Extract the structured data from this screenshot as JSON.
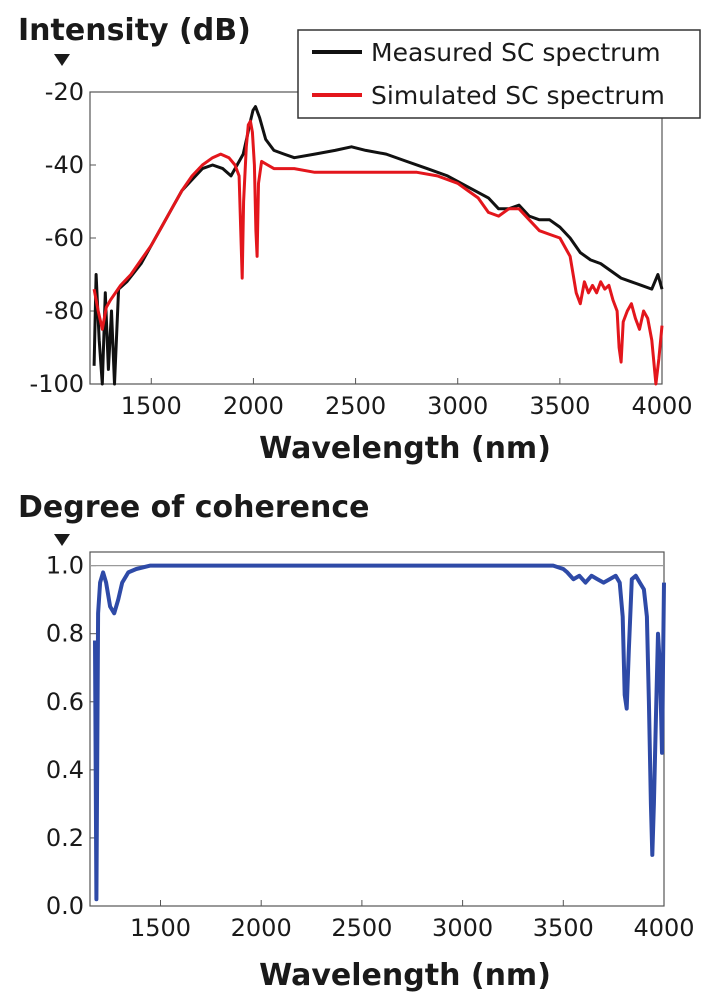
{
  "chart_data": [
    {
      "type": "line",
      "ylabel": "Intensity (dB)",
      "xlabel": "Wavelength (nm)",
      "xlim": [
        1200,
        4000
      ],
      "ylim": [
        -100,
        -20
      ],
      "x_ticks": [
        "1500",
        "2000",
        "2500",
        "3000",
        "3500",
        "4000"
      ],
      "x_tick_values": [
        1500,
        2000,
        2500,
        3000,
        3500,
        4000
      ],
      "y_ticks": [
        "-20",
        "-40",
        "-60",
        "-80",
        "-100"
      ],
      "y_tick_values": [
        -20,
        -40,
        -60,
        -80,
        -100
      ],
      "grid": false,
      "legend_position": "top-right",
      "series": [
        {
          "name": "Measured SC spectrum",
          "color": "#111111",
          "points": [
            [
              1220,
              -95
            ],
            [
              1230,
              -70
            ],
            [
              1245,
              -88
            ],
            [
              1260,
              -100
            ],
            [
              1275,
              -75
            ],
            [
              1290,
              -96
            ],
            [
              1305,
              -80
            ],
            [
              1320,
              -100
            ],
            [
              1340,
              -74
            ],
            [
              1380,
              -72
            ],
            [
              1450,
              -67
            ],
            [
              1500,
              -62
            ],
            [
              1550,
              -57
            ],
            [
              1600,
              -52
            ],
            [
              1650,
              -47
            ],
            [
              1700,
              -44
            ],
            [
              1750,
              -41
            ],
            [
              1800,
              -40
            ],
            [
              1850,
              -41
            ],
            [
              1890,
              -43
            ],
            [
              1920,
              -40
            ],
            [
              1950,
              -37
            ],
            [
              1970,
              -32
            ],
            [
              1985,
              -28
            ],
            [
              1998,
              -25
            ],
            [
              2010,
              -24
            ],
            [
              2030,
              -27
            ],
            [
              2060,
              -33
            ],
            [
              2100,
              -36
            ],
            [
              2150,
              -37
            ],
            [
              2200,
              -38
            ],
            [
              2300,
              -37
            ],
            [
              2400,
              -36
            ],
            [
              2480,
              -35
            ],
            [
              2550,
              -36
            ],
            [
              2650,
              -37
            ],
            [
              2750,
              -39
            ],
            [
              2850,
              -41
            ],
            [
              2950,
              -43
            ],
            [
              3050,
              -46
            ],
            [
              3150,
              -49
            ],
            [
              3200,
              -52
            ],
            [
              3250,
              -52
            ],
            [
              3300,
              -51
            ],
            [
              3350,
              -54
            ],
            [
              3400,
              -55
            ],
            [
              3450,
              -55
            ],
            [
              3500,
              -57
            ],
            [
              3550,
              -60
            ],
            [
              3600,
              -64
            ],
            [
              3650,
              -66
            ],
            [
              3700,
              -67
            ],
            [
              3750,
              -69
            ],
            [
              3800,
              -71
            ],
            [
              3850,
              -72
            ],
            [
              3900,
              -73
            ],
            [
              3950,
              -74
            ],
            [
              3980,
              -70
            ],
            [
              4000,
              -74
            ]
          ]
        },
        {
          "name": "Simulated SC spectrum",
          "color": "#e3161c",
          "points": [
            [
              1220,
              -74
            ],
            [
              1240,
              -80
            ],
            [
              1260,
              -85
            ],
            [
              1280,
              -79
            ],
            [
              1300,
              -77
            ],
            [
              1350,
              -73
            ],
            [
              1400,
              -70
            ],
            [
              1450,
              -66
            ],
            [
              1500,
              -62
            ],
            [
              1550,
              -57
            ],
            [
              1600,
              -52
            ],
            [
              1650,
              -47
            ],
            [
              1700,
              -43
            ],
            [
              1750,
              -40
            ],
            [
              1800,
              -38
            ],
            [
              1840,
              -37
            ],
            [
              1880,
              -38
            ],
            [
              1910,
              -40
            ],
            [
              1930,
              -43
            ],
            [
              1940,
              -62
            ],
            [
              1945,
              -71
            ],
            [
              1952,
              -50
            ],
            [
              1965,
              -35
            ],
            [
              1975,
              -29
            ],
            [
              1985,
              -28
            ],
            [
              1995,
              -31
            ],
            [
              2005,
              -40
            ],
            [
              2012,
              -58
            ],
            [
              2018,
              -65
            ],
            [
              2025,
              -45
            ],
            [
              2040,
              -39
            ],
            [
              2070,
              -40
            ],
            [
              2100,
              -41
            ],
            [
              2200,
              -41
            ],
            [
              2300,
              -42
            ],
            [
              2400,
              -42
            ],
            [
              2500,
              -42
            ],
            [
              2600,
              -42
            ],
            [
              2700,
              -42
            ],
            [
              2800,
              -42
            ],
            [
              2900,
              -43
            ],
            [
              3000,
              -45
            ],
            [
              3050,
              -47
            ],
            [
              3100,
              -49
            ],
            [
              3150,
              -53
            ],
            [
              3200,
              -54
            ],
            [
              3250,
              -52
            ],
            [
              3300,
              -52
            ],
            [
              3350,
              -55
            ],
            [
              3400,
              -58
            ],
            [
              3450,
              -59
            ],
            [
              3500,
              -60
            ],
            [
              3550,
              -65
            ],
            [
              3580,
              -75
            ],
            [
              3600,
              -78
            ],
            [
              3620,
              -72
            ],
            [
              3640,
              -75
            ],
            [
              3660,
              -73
            ],
            [
              3680,
              -75
            ],
            [
              3700,
              -72
            ],
            [
              3720,
              -74
            ],
            [
              3740,
              -73
            ],
            [
              3760,
              -77
            ],
            [
              3780,
              -80
            ],
            [
              3790,
              -90
            ],
            [
              3800,
              -94
            ],
            [
              3810,
              -83
            ],
            [
              3830,
              -80
            ],
            [
              3850,
              -78
            ],
            [
              3870,
              -82
            ],
            [
              3890,
              -85
            ],
            [
              3910,
              -80
            ],
            [
              3930,
              -82
            ],
            [
              3950,
              -88
            ],
            [
              3970,
              -100
            ],
            [
              3985,
              -93
            ],
            [
              4000,
              -84
            ]
          ]
        }
      ]
    },
    {
      "type": "area",
      "ylabel": "Degree of coherence",
      "xlabel": "Wavelength (nm)",
      "xlim": [
        1150,
        4000
      ],
      "ylim": [
        0,
        1.04
      ],
      "x_ticks": [
        "1500",
        "2000",
        "2500",
        "3000",
        "3500",
        "4000"
      ],
      "x_tick_values": [
        1500,
        2000,
        2500,
        3000,
        3500,
        4000
      ],
      "y_ticks": [
        "1.0",
        "0.8",
        "0.6",
        "0.4",
        "0.2",
        "0.0"
      ],
      "y_tick_values": [
        1.0,
        0.8,
        0.6,
        0.4,
        0.2,
        0.0
      ],
      "reference_line": 1.0,
      "grid": false,
      "series": [
        {
          "color": "#2e4aa7",
          "points": [
            [
              1175,
              0.78
            ],
            [
              1182,
              0.02
            ],
            [
              1190,
              0.86
            ],
            [
              1200,
              0.95
            ],
            [
              1215,
              0.98
            ],
            [
              1230,
              0.95
            ],
            [
              1250,
              0.88
            ],
            [
              1270,
              0.86
            ],
            [
              1290,
              0.9
            ],
            [
              1310,
              0.95
            ],
            [
              1340,
              0.98
            ],
            [
              1380,
              0.99
            ],
            [
              1450,
              1.0
            ],
            [
              1500,
              1.0
            ],
            [
              2000,
              1.0
            ],
            [
              2500,
              1.0
            ],
            [
              3000,
              1.0
            ],
            [
              3450,
              1.0
            ],
            [
              3500,
              0.99
            ],
            [
              3520,
              0.98
            ],
            [
              3550,
              0.96
            ],
            [
              3580,
              0.97
            ],
            [
              3610,
              0.95
            ],
            [
              3640,
              0.97
            ],
            [
              3670,
              0.96
            ],
            [
              3700,
              0.95
            ],
            [
              3730,
              0.96
            ],
            [
              3760,
              0.97
            ],
            [
              3780,
              0.95
            ],
            [
              3795,
              0.85
            ],
            [
              3805,
              0.62
            ],
            [
              3815,
              0.58
            ],
            [
              3825,
              0.75
            ],
            [
              3840,
              0.96
            ],
            [
              3860,
              0.97
            ],
            [
              3880,
              0.95
            ],
            [
              3900,
              0.93
            ],
            [
              3915,
              0.85
            ],
            [
              3925,
              0.6
            ],
            [
              3935,
              0.3
            ],
            [
              3942,
              0.15
            ],
            [
              3950,
              0.3
            ],
            [
              3960,
              0.55
            ],
            [
              3970,
              0.8
            ],
            [
              3980,
              0.7
            ],
            [
              3990,
              0.45
            ],
            [
              4000,
              0.95
            ]
          ]
        }
      ]
    }
  ]
}
